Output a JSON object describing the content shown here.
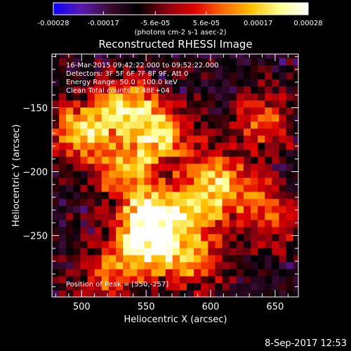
{
  "chart_data": {
    "type": "heatmap",
    "title": "Reconstructed RHESSI Image",
    "xlabel": "Heliocentric X (arcsec)",
    "ylabel": "Heliocentric Y (arcsec)",
    "xlim": [
      477,
      668
    ],
    "ylim": [
      -298,
      -108
    ],
    "xticks": [
      500,
      550,
      600,
      650
    ],
    "yticks": [
      -250,
      -200,
      -150
    ],
    "colorbar": {
      "range": [
        -0.00028,
        0.00028
      ],
      "tick_values": [
        -0.00028,
        -0.00017,
        -5.6e-05,
        5.6e-05,
        0.00017,
        0.00028
      ],
      "tick_labels": [
        "-0.00028",
        "-0.00017",
        "-5.6e-05",
        "5.6e-05",
        "0.00017",
        "0.00028"
      ],
      "label": "(photons cm-2 s-1 asec-2)",
      "colors": [
        "#0a00ff",
        "#5a1ab0",
        "#3a0a30",
        "#000000",
        "#8a0010",
        "#e00000",
        "#ff6a00",
        "#ffc000",
        "#ffff90",
        "#ffffff"
      ]
    },
    "annotations": {
      "time": "16-Mar-2015 09:42:22.000 to 09:52:22.000",
      "detectors": "Detectors: 3F 5F 6F 7F 8F 9F, Att 0",
      "energy": "Energy Range: 50.0 - 100.0 keV",
      "clean": "Clean     Total counts: 2.48E+04",
      "peak": "Position of Peak = [550,-257]"
    },
    "peak": [
      550,
      -257
    ],
    "hot_regions": [
      {
        "x": 500,
        "y": -168,
        "level": 0.85
      },
      {
        "x": 535,
        "y": -150,
        "level": 0.75
      },
      {
        "x": 560,
        "y": -170,
        "level": 0.8
      },
      {
        "x": 535,
        "y": -200,
        "level": 0.7
      },
      {
        "x": 555,
        "y": -235,
        "level": 0.9
      },
      {
        "x": 550,
        "y": -257,
        "level": 1.0
      },
      {
        "x": 590,
        "y": -230,
        "level": 0.7
      },
      {
        "x": 600,
        "y": -200,
        "level": 0.55
      },
      {
        "x": 585,
        "y": -270,
        "level": 0.6
      },
      {
        "x": 520,
        "y": -280,
        "level": 0.55
      },
      {
        "x": 640,
        "y": -160,
        "level": 0.55
      },
      {
        "x": 625,
        "y": -215,
        "level": 0.45
      },
      {
        "x": 650,
        "y": -240,
        "level": 0.45
      }
    ]
  },
  "timestamp": "8-Sep-2017 12:53"
}
